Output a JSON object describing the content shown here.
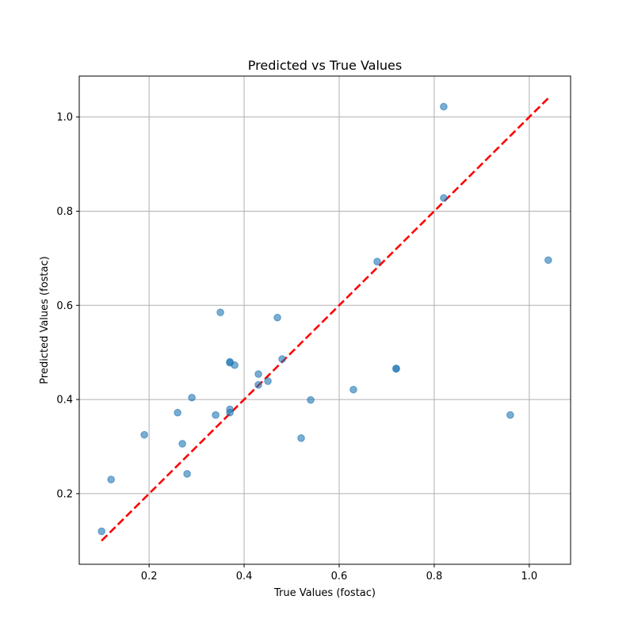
{
  "chart_data": {
    "type": "scatter",
    "title": "Predicted vs True Values",
    "xlabel": "True Values (fostac)",
    "ylabel": "Predicted Values (fostac)",
    "xlim": [
      0.053,
      1.087
    ],
    "ylim": [
      0.05,
      1.087
    ],
    "xticks": [
      0.2,
      0.4,
      0.6,
      0.8,
      1.0
    ],
    "yticks": [
      0.2,
      0.4,
      0.6,
      0.8,
      1.0
    ],
    "xtick_labels": [
      "0.2",
      "0.4",
      "0.6",
      "0.8",
      "1.0"
    ],
    "ytick_labels": [
      "0.2",
      "0.4",
      "0.6",
      "0.8",
      "1.0"
    ],
    "grid": true,
    "point_color": "#1f77b4",
    "line_color": "#ff0000",
    "points": [
      {
        "x": 0.1,
        "y": 0.12
      },
      {
        "x": 0.12,
        "y": 0.23
      },
      {
        "x": 0.19,
        "y": 0.325
      },
      {
        "x": 0.26,
        "y": 0.372
      },
      {
        "x": 0.27,
        "y": 0.306
      },
      {
        "x": 0.28,
        "y": 0.242
      },
      {
        "x": 0.29,
        "y": 0.404
      },
      {
        "x": 0.34,
        "y": 0.367
      },
      {
        "x": 0.35,
        "y": 0.585
      },
      {
        "x": 0.37,
        "y": 0.478
      },
      {
        "x": 0.37,
        "y": 0.48
      },
      {
        "x": 0.37,
        "y": 0.372
      },
      {
        "x": 0.37,
        "y": 0.379
      },
      {
        "x": 0.38,
        "y": 0.473
      },
      {
        "x": 0.43,
        "y": 0.454
      },
      {
        "x": 0.43,
        "y": 0.431
      },
      {
        "x": 0.45,
        "y": 0.439
      },
      {
        "x": 0.47,
        "y": 0.574
      },
      {
        "x": 0.48,
        "y": 0.486
      },
      {
        "x": 0.52,
        "y": 0.318
      },
      {
        "x": 0.54,
        "y": 0.399
      },
      {
        "x": 0.63,
        "y": 0.421
      },
      {
        "x": 0.68,
        "y": 0.693
      },
      {
        "x": 0.72,
        "y": 0.466
      },
      {
        "x": 0.72,
        "y": 0.465
      },
      {
        "x": 0.82,
        "y": 1.022
      },
      {
        "x": 0.82,
        "y": 0.828
      },
      {
        "x": 0.96,
        "y": 0.367
      },
      {
        "x": 1.04,
        "y": 0.696
      }
    ],
    "reference_line": {
      "style": "dashed",
      "x": [
        0.1,
        1.04
      ],
      "y": [
        0.1,
        1.04
      ]
    }
  }
}
